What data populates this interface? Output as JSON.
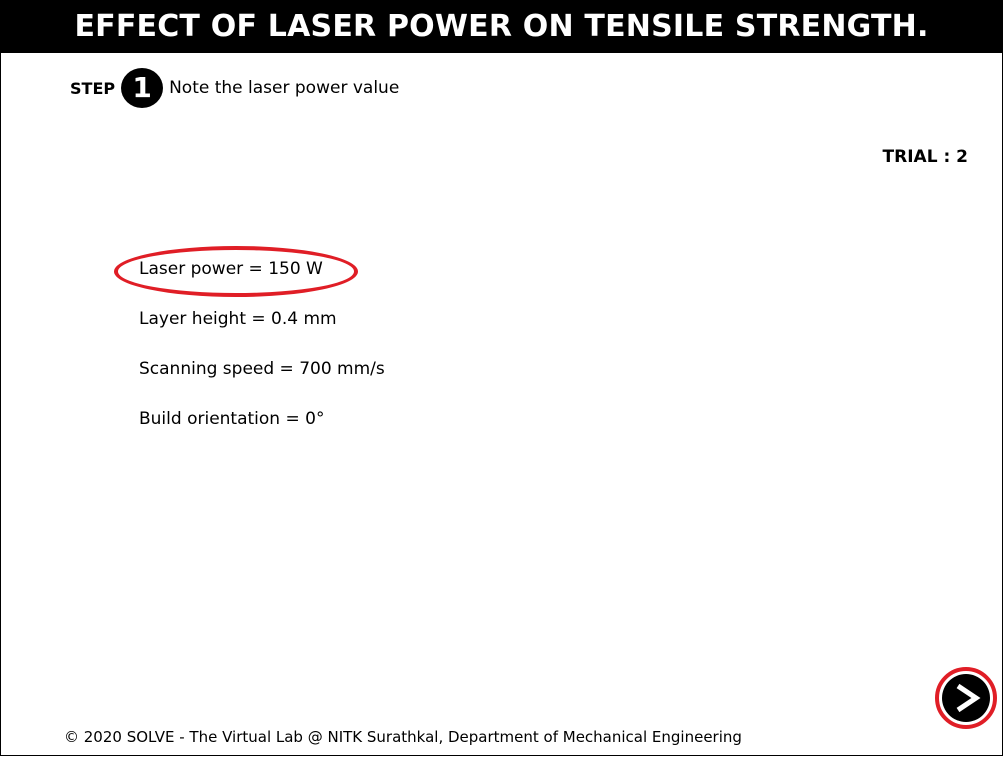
{
  "header": {
    "title": "EFFECT OF LASER POWER ON TENSILE STRENGTH."
  },
  "step": {
    "label": "STEP",
    "number": "1",
    "text": "Note the laser power value"
  },
  "trial": {
    "text": "TRIAL : 2"
  },
  "parameters": [
    {
      "text": "Laser power = 150 W",
      "highlighted": true
    },
    {
      "text": "Layer height = 0.4 mm",
      "highlighted": false
    },
    {
      "text": "Scanning speed = 700 mm/s",
      "highlighted": false
    },
    {
      "text": "Build orientation = 0°",
      "highlighted": false
    }
  ],
  "next_button": {
    "icon": "next-arrow-icon"
  },
  "footer": {
    "text": "© 2020 SOLVE - The Virtual Lab @ NITK Surathkal, Department of Mechanical Engineering"
  },
  "colors": {
    "highlight": "#e01e26",
    "title_bg": "#000000",
    "title_fg": "#ffffff"
  }
}
